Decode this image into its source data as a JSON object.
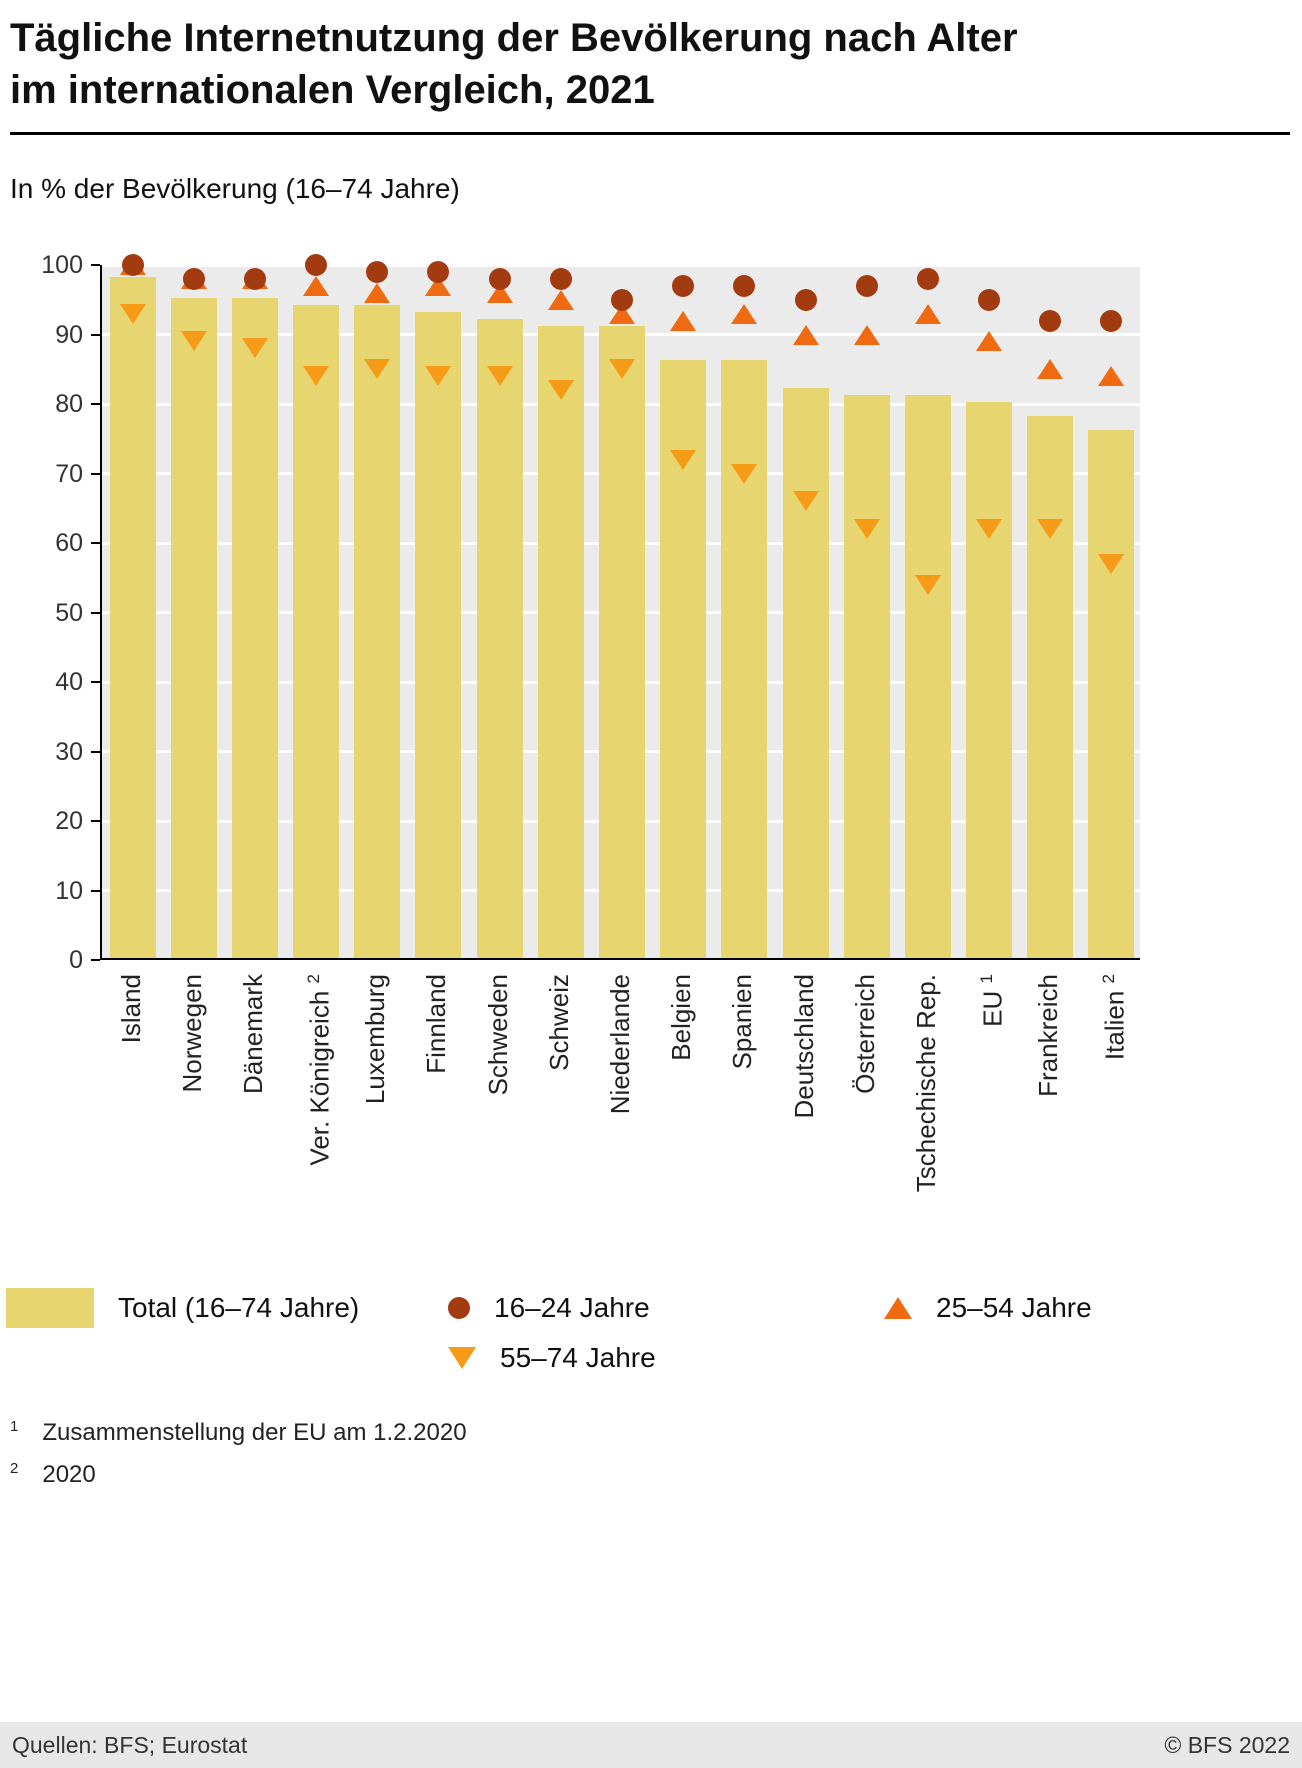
{
  "header": {
    "title_line1": "Tägliche Internetnutzung der Bevölkerung nach Alter",
    "title_line2": "im internationalen Vergleich, 2021",
    "subtitle": "In % der Bevölkerung (16–74 Jahre)"
  },
  "chart_data": {
    "type": "bar",
    "title": "Tägliche Internetnutzung der Bevölkerung nach Alter im internationalen Vergleich, 2021",
    "ylabel": "In % der Bevölkerung (16–74 Jahre)",
    "xlabel": "",
    "ylim": [
      0,
      100
    ],
    "yticks": [
      0,
      10,
      20,
      30,
      40,
      50,
      60,
      70,
      80,
      90,
      100
    ],
    "grid": true,
    "legend_position": "bottom",
    "categories": [
      {
        "name": "Island",
        "sup": ""
      },
      {
        "name": "Norwegen",
        "sup": ""
      },
      {
        "name": "Dänemark",
        "sup": ""
      },
      {
        "name": "Ver. Königreich",
        "sup": "2"
      },
      {
        "name": "Luxemburg",
        "sup": ""
      },
      {
        "name": "Finnland",
        "sup": ""
      },
      {
        "name": "Schweden",
        "sup": ""
      },
      {
        "name": "Schweiz",
        "sup": ""
      },
      {
        "name": "Niederlande",
        "sup": ""
      },
      {
        "name": "Belgien",
        "sup": ""
      },
      {
        "name": "Spanien",
        "sup": ""
      },
      {
        "name": "Deutschland",
        "sup": ""
      },
      {
        "name": "Österreich",
        "sup": ""
      },
      {
        "name": "Tschechische Rep.",
        "sup": ""
      },
      {
        "name": "EU",
        "sup": "1"
      },
      {
        "name": "Frankreich",
        "sup": ""
      },
      {
        "name": "Italien",
        "sup": "2"
      }
    ],
    "series": [
      {
        "name": "Total (16–74 Jahre)",
        "marker": "bar",
        "color": "#e7d570",
        "values": [
          98,
          95,
          95,
          94,
          94,
          93,
          92,
          91,
          91,
          86,
          86,
          82,
          81,
          81,
          80,
          78,
          76
        ]
      },
      {
        "name": "16–24 Jahre",
        "marker": "circle",
        "color": "#a33b11",
        "values": [
          100,
          98,
          98,
          100,
          99,
          99,
          98,
          98,
          95,
          97,
          97,
          95,
          97,
          98,
          95,
          92,
          92
        ]
      },
      {
        "name": "25–54 Jahre",
        "marker": "triangle-up",
        "color": "#ef6a10",
        "values": [
          100,
          98,
          98,
          97,
          96,
          97,
          96,
          95,
          93,
          92,
          93,
          90,
          90,
          93,
          89,
          85,
          84
        ]
      },
      {
        "name": "55–74 Jahre",
        "marker": "triangle-down",
        "color": "#f59b18",
        "values": [
          93,
          89,
          88,
          84,
          85,
          84,
          84,
          82,
          85,
          72,
          70,
          66,
          62,
          54,
          62,
          62,
          57
        ]
      }
    ]
  },
  "footnotes": [
    {
      "sup": "1",
      "text": "Zusammenstellung der EU am 1.2.2020"
    },
    {
      "sup": "2",
      "text": "2020"
    }
  ],
  "footer": {
    "source": "Quellen: BFS; Eurostat",
    "copyright": "© BFS 2022"
  }
}
